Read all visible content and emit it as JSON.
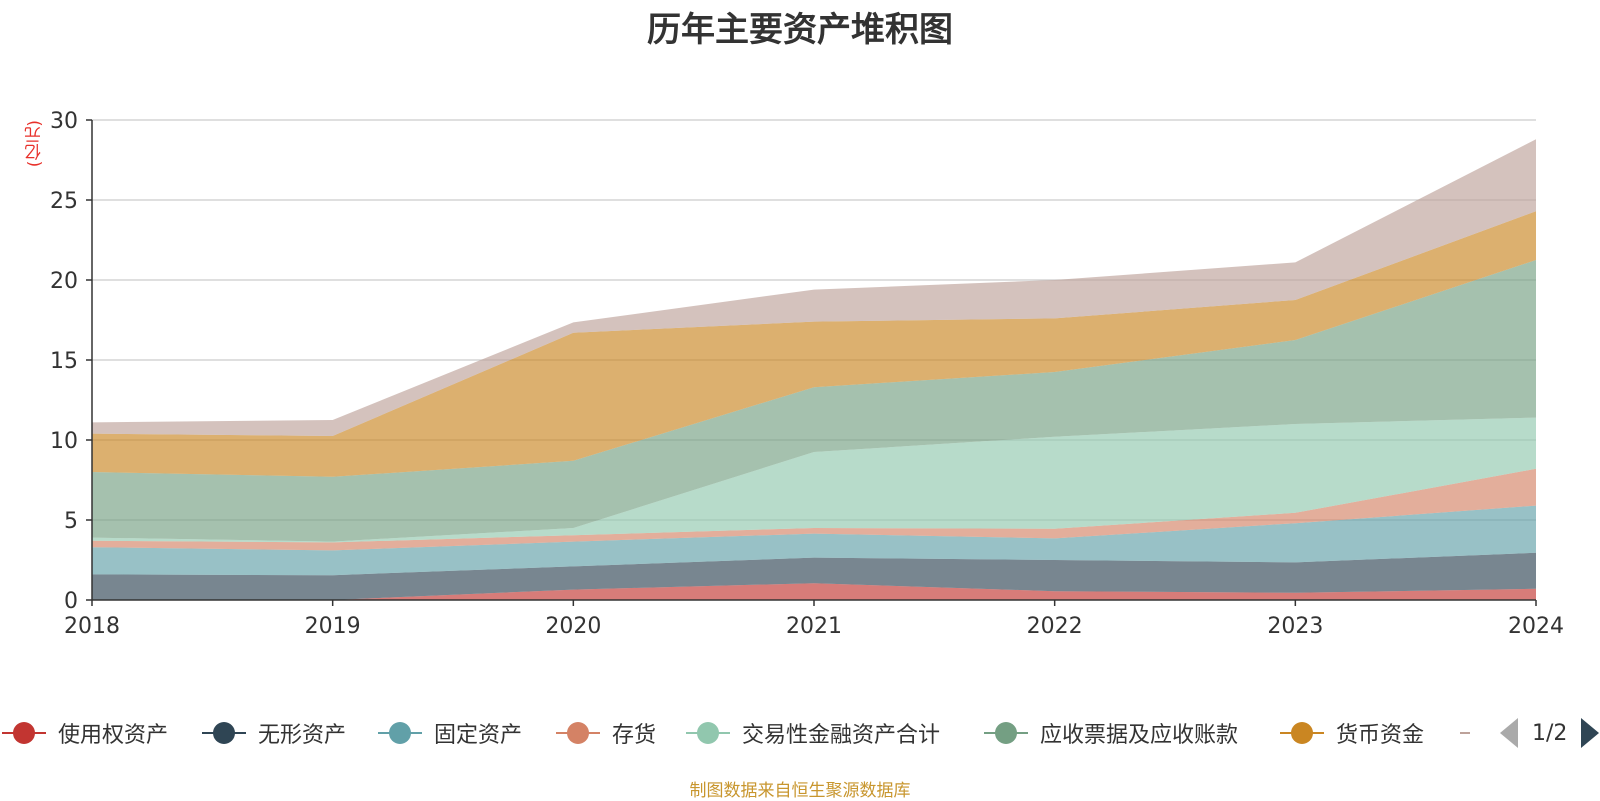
{
  "title": "历年主要资产堆积图",
  "source_note": "制图数据来自恒生聚源数据库",
  "legend_page": "1/2",
  "chart_data": {
    "type": "area",
    "stacked": true,
    "title": "历年主要资产堆积图",
    "ylabel": "(亿元)",
    "xlabel": "",
    "x": [
      "2018",
      "2019",
      "2020",
      "2021",
      "2022",
      "2023",
      "2024"
    ],
    "ylim": [
      0,
      30
    ],
    "yticks": [
      0,
      5,
      10,
      15,
      20,
      25,
      30
    ],
    "grid": true,
    "legend_position": "bottom",
    "series": [
      {
        "name": "使用权资产",
        "color": "#c23531",
        "values": [
          0,
          0,
          0.65,
          1.05,
          0.55,
          0.45,
          0.7
        ]
      },
      {
        "name": "无形资产",
        "color": "#2f4554",
        "values": [
          1.6,
          1.55,
          1.45,
          1.6,
          1.95,
          1.9,
          2.25
        ]
      },
      {
        "name": "固定资产",
        "color": "#61a0a8",
        "values": [
          1.7,
          1.55,
          1.55,
          1.5,
          1.35,
          2.45,
          2.95
        ]
      },
      {
        "name": "存货",
        "color": "#d48265",
        "values": [
          0.4,
          0.5,
          0.4,
          0.35,
          0.6,
          0.65,
          2.3
        ]
      },
      {
        "name": "交易性金融资产合计",
        "color": "#91c7ae",
        "values": [
          0.2,
          0.05,
          0.45,
          4.75,
          5.75,
          5.55,
          3.2
        ]
      },
      {
        "name": "应收票据及应收账款",
        "color": "#749f83",
        "values": [
          4.1,
          4.05,
          4.2,
          4.05,
          4.05,
          5.25,
          9.85
        ]
      },
      {
        "name": "货币资金",
        "color": "#ca8622",
        "values": [
          2.4,
          2.55,
          8.0,
          4.1,
          3.35,
          2.5,
          3.05
        ]
      },
      {
        "name": "",
        "color": "#bda29a",
        "values": [
          0.7,
          1.0,
          0.65,
          2.0,
          2.4,
          2.35,
          4.5
        ]
      }
    ]
  }
}
